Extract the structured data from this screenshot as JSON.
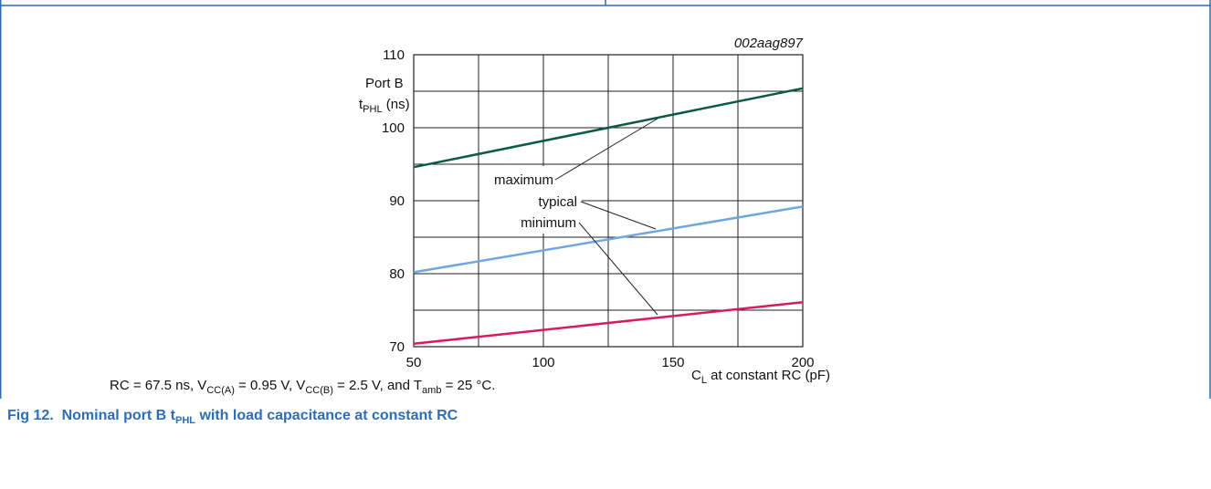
{
  "chart_data": {
    "type": "line",
    "code": "002aag897",
    "ylabel": [
      [
        {
          "t": "Port B"
        }
      ],
      [
        {
          "t": "t"
        },
        {
          "t": "PHL",
          "sub": true
        },
        {
          "t": " (ns)"
        }
      ]
    ],
    "xlabel": [
      {
        "t": "C"
      },
      {
        "t": "L",
        "sub": true
      },
      {
        "t": " at constant RC (pF)"
      }
    ],
    "x": [
      50,
      200
    ],
    "series": [
      {
        "name": "maximum",
        "color": "#0b5a45",
        "values": [
          94.6,
          105.4
        ]
      },
      {
        "name": "typical",
        "color": "#6fa8dc",
        "values": [
          80.2,
          89.2
        ]
      },
      {
        "name": "minimum",
        "color": "#d81b60",
        "values": [
          70.4,
          76.1
        ]
      }
    ],
    "xlim": [
      50,
      200
    ],
    "xticks": [
      50,
      100,
      150,
      200
    ],
    "xminor": [
      75,
      125,
      175
    ],
    "ylim": [
      70,
      110
    ],
    "yticks": [
      70,
      80,
      90,
      100,
      110
    ],
    "yminor": [
      75,
      85,
      95,
      105
    ],
    "grid": true
  },
  "note": [
    {
      "t": "RC = 67.5 ns, V"
    },
    {
      "t": "CC(A)",
      "sub": true
    },
    {
      "t": " = 0.95 V, V"
    },
    {
      "t": "CC(B)",
      "sub": true
    },
    {
      "t": " = 2.5 V, and T"
    },
    {
      "t": "amb",
      "sub": true
    },
    {
      "t": " = 25 °C."
    }
  ],
  "caption": [
    {
      "t": "Fig 12.  Nominal port B t"
    },
    {
      "t": "PHL",
      "sub": true
    },
    {
      "t": " with load capacitance at constant RC"
    }
  ]
}
